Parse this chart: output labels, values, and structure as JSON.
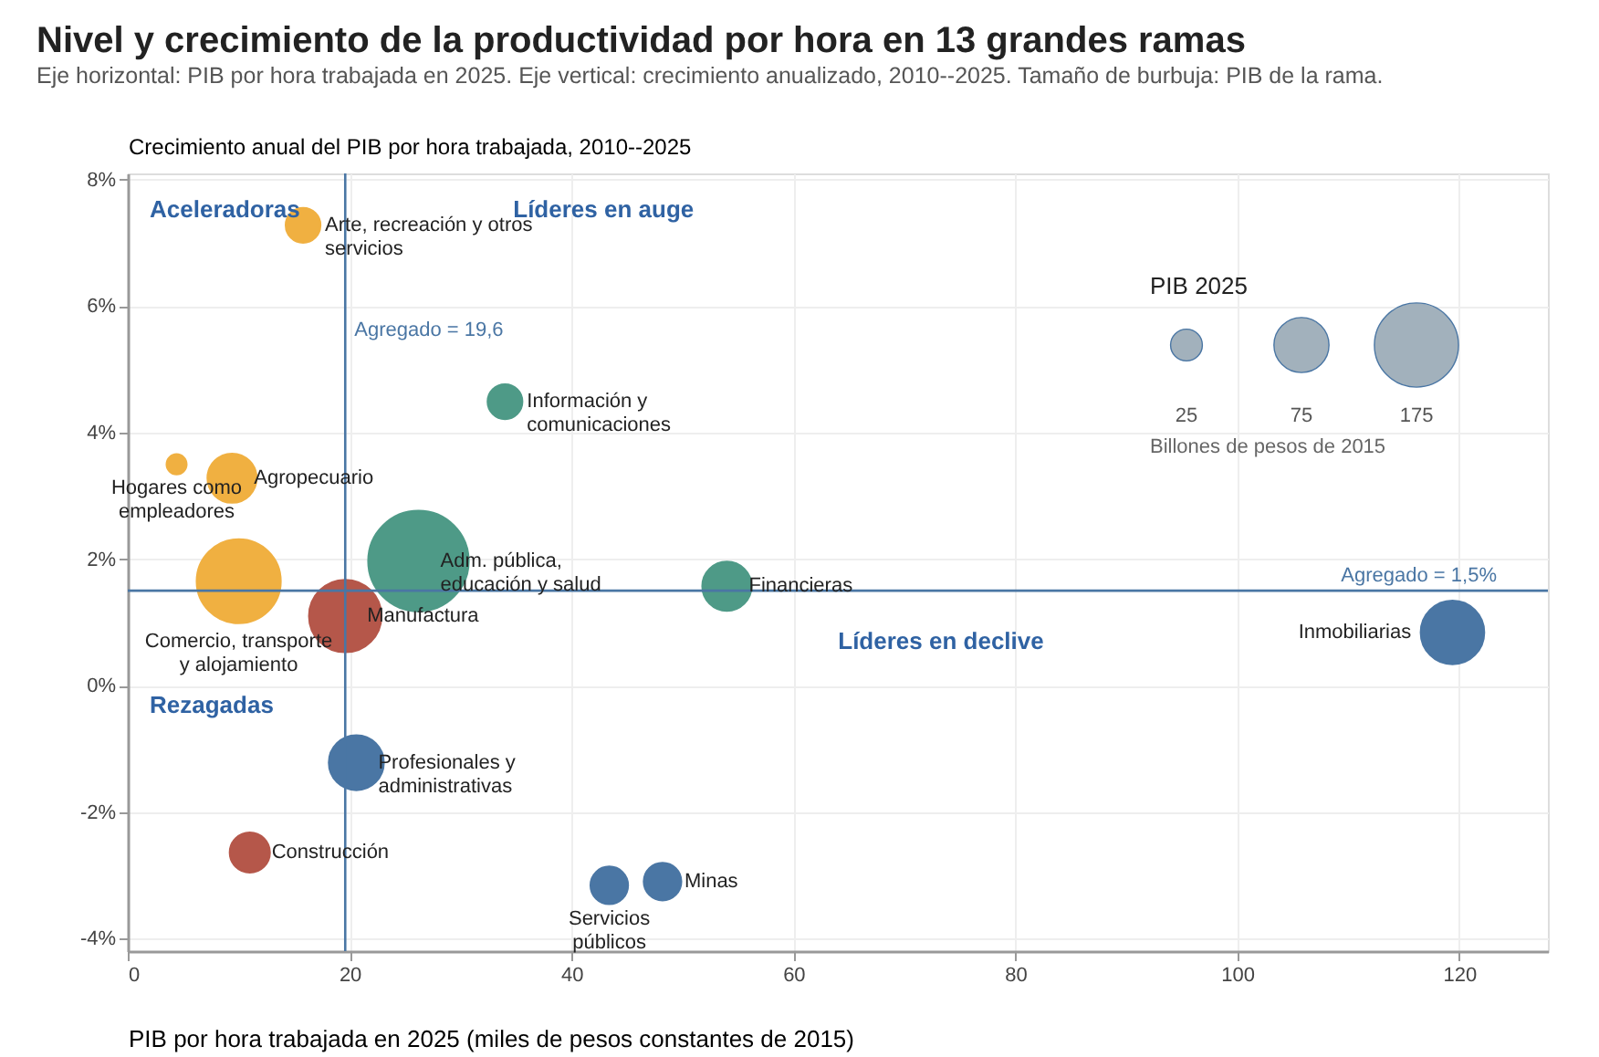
{
  "chart_data": {
    "type": "bubble",
    "title": "Nivel y crecimiento de la productividad por hora en 13 grandes ramas",
    "subtitle": "Eje horizontal: PIB por hora trabajada en 2025. Eje vertical: crecimiento anualizado, 2010--2025. Tamaño de burbuja: PIB de la rama.",
    "xlabel": "PIB por hora trabajada en 2025 (miles de pesos constantes de 2015)",
    "ylabel": "Crecimiento anual del PIB por hora trabajada, 2010--2025",
    "legend_title": "PIB 2025",
    "size_legend": [
      25,
      75,
      175
    ],
    "legend": "top right",
    "grid": true,
    "xlim": [
      0,
      128
    ],
    "xticks": [
      0,
      20,
      40,
      60,
      80,
      100,
      120
    ],
    "ylim": [
      -4.2,
      8.1
    ],
    "yticks": [
      {
        "value": -4,
        "label": "-4%"
      },
      {
        "value": -2,
        "label": "-2%"
      },
      {
        "value": 0,
        "label": "0%"
      },
      {
        "value": 2,
        "label": "2%"
      },
      {
        "value": 4,
        "label": "4%"
      },
      {
        "value": 6,
        "label": "6%"
      },
      {
        "value": 8,
        "label": "8%"
      }
    ],
    "series": [
      {
        "color": "#f0b041",
        "x": [
          15.8,
          4.4,
          9.4,
          10.0
        ],
        "values": [
          7.28,
          3.5,
          3.28,
          1.65
        ],
        "sizes": [
          30,
          10,
          60,
          175
        ]
      },
      {
        "color": "#4e9a87",
        "x": [
          34.0,
          26.2,
          54.0
        ],
        "values": [
          4.49,
          1.97,
          1.57
        ],
        "sizes": [
          30,
          250,
          60
        ]
      },
      {
        "color": "#b5574a",
        "x": [
          19.6,
          11.0
        ],
        "values": [
          1.1,
          -2.64
        ],
        "sizes": [
          130,
          40
        ]
      },
      {
        "color": "#4a76a4",
        "x": [
          119.4,
          20.6,
          43.4,
          48.2
        ],
        "values": [
          0.84,
          -1.22,
          -3.16,
          -3.1
        ],
        "sizes": [
          100,
          75,
          35,
          35
        ]
      }
    ],
    "ref_lines": [
      {
        "axis": "x",
        "value": 19.6,
        "label": "Agregado = 19,6",
        "color": "#4a76a4"
      },
      {
        "axis": "y",
        "value": 1.5,
        "label": "Agregado = 1,5%",
        "color": "#4a76a4"
      }
    ],
    "annotations": [
      "Aceleradoras",
      "Líderes en auge",
      "Rezagadas",
      "Líderes en declive",
      {
        "text": "Arte, recreación y otros\nservicios",
        "x": 15.8,
        "y": 7.28
      },
      {
        "text": "Información y\ncomunicaciones",
        "x": 34.0,
        "y": 4.49
      },
      {
        "text": "Agropecuario",
        "x": 9.4,
        "y": 3.28
      },
      {
        "text": "Hogares como\nempleadores",
        "x": 4.4,
        "y": 3.5
      },
      {
        "text": "Adm. pública,\neducación y salud",
        "x": 26.2,
        "y": 1.97
      },
      {
        "text": "Financieras",
        "x": 54.0,
        "y": 1.57
      },
      {
        "text": "Comercio, transporte\ny alojamiento",
        "x": 10.0,
        "y": 1.65
      },
      {
        "text": "Manufactura",
        "x": 19.6,
        "y": 1.1
      },
      {
        "text": "Inmobiliarias",
        "x": 119.4,
        "y": 0.84
      },
      {
        "text": "Profesionales y\nadministrativas",
        "x": 20.6,
        "y": -1.22
      },
      {
        "text": "Construcción",
        "x": 11.0,
        "y": -2.64
      },
      {
        "text": "Minas",
        "x": 48.2,
        "y": -3.1
      },
      {
        "text": "Servicios\npúblicos",
        "x": 43.4,
        "y": -3.16
      },
      "Billones de pesos de 2015"
    ]
  }
}
